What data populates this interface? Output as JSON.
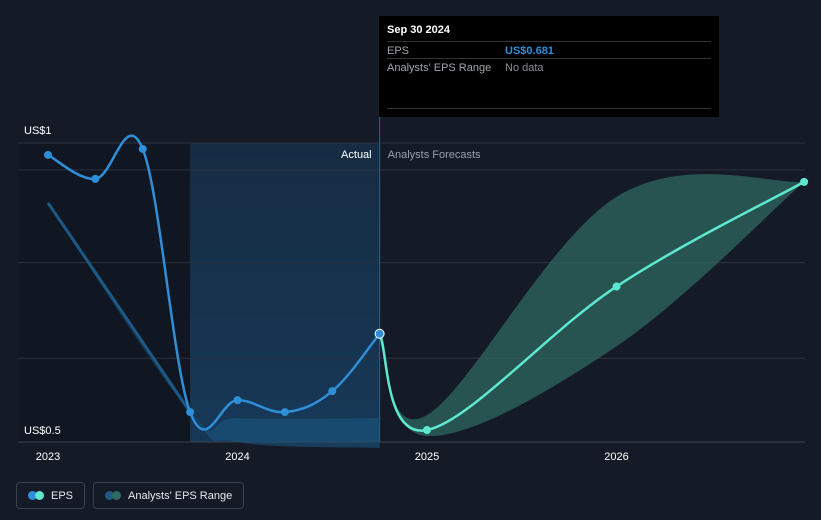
{
  "chart_data": {
    "type": "line",
    "y_labels": {
      "top": "US$1",
      "bottom": "US$0.5"
    },
    "ylim": [
      0.5,
      1.0
    ],
    "x_ticks": [
      {
        "label": "2023",
        "x": 2023.0
      },
      {
        "label": "2024",
        "x": 2024.0
      },
      {
        "label": "2025",
        "x": 2025.0
      },
      {
        "label": "2026",
        "x": 2026.0
      }
    ],
    "region_labels": {
      "actual": "Actual",
      "forecast": "Analysts Forecasts"
    },
    "actual_eps": {
      "name": "EPS",
      "x": [
        2023.0,
        2023.25,
        2023.5,
        2023.75,
        2024.0,
        2024.25,
        2024.5,
        2024.75
      ],
      "y": [
        0.98,
        0.94,
        0.99,
        0.55,
        0.57,
        0.55,
        0.585,
        0.681
      ]
    },
    "forecast_eps": {
      "x": [
        2024.75,
        2025.0,
        2026.0,
        2026.99
      ],
      "y": [
        0.681,
        0.52,
        0.76,
        0.935
      ]
    },
    "forecast_range": {
      "name": "Analysts' EPS Range",
      "x": [
        2024.75,
        2025.0,
        2026.0,
        2026.99
      ],
      "high": [
        0.681,
        0.545,
        0.91,
        0.935
      ],
      "low": [
        0.681,
        0.51,
        0.66,
        0.935
      ]
    },
    "past_range_band": {
      "x": [
        2023.0,
        2023.75,
        2024.0,
        2024.75
      ],
      "high": [
        0.9,
        0.55,
        0.54,
        0.54
      ],
      "low": [
        0.9,
        0.55,
        0.5,
        0.49
      ]
    },
    "grid": true
  },
  "tooltip": {
    "date": "Sep 30 2024",
    "eps_label": "EPS",
    "eps_value": "US$0.681",
    "range_label": "Analysts' EPS Range",
    "range_value": "No data"
  },
  "legend": [
    {
      "label": "EPS",
      "colors": [
        "#2e8fd8",
        "#5fe8d0"
      ]
    },
    {
      "label": "Analysts' EPS Range",
      "colors": [
        "#1f5a85",
        "#2f6b63"
      ]
    }
  ],
  "colors": {
    "eps_actual": "#2e8fd8",
    "eps_forecast": "#5fe8d0",
    "forecast_band": "#2f6b63",
    "past_band": "#1c5a85",
    "highlight": "#163a5a"
  }
}
